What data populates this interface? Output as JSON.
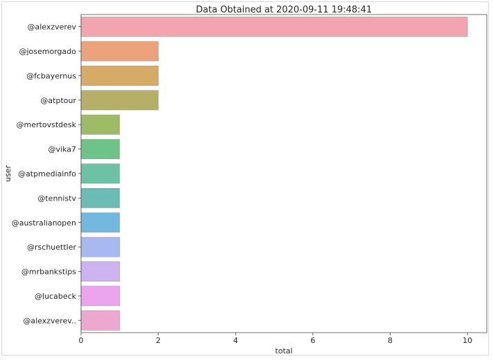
{
  "chart_data": {
    "type": "bar",
    "orientation": "horizontal",
    "title": "Data Obtained at 2020-09-11 19:48:41",
    "xlabel": "total",
    "ylabel": "user",
    "categories": [
      "@alexzverev",
      "@josemorgado",
      "@fcbayernus",
      "@atptour",
      "@mertovstdesk",
      "@vika7",
      "@atpmediainfo",
      "@tennistv",
      "@australianopen",
      "@rschuettler",
      "@mrbankstips",
      "@lucabeck",
      "@alexzverev.."
    ],
    "values": [
      10,
      2,
      2,
      2,
      1,
      1,
      1,
      1,
      1,
      1,
      1,
      1,
      1
    ],
    "xlim": [
      0,
      10.5
    ],
    "xticks": [
      0,
      2,
      4,
      6,
      8,
      10
    ],
    "grid": false,
    "legend": "none",
    "colors": [
      "#f2a5ae",
      "#eca27b",
      "#d6ab68",
      "#b5af67",
      "#9ebc66",
      "#6ec389",
      "#6dc1a4",
      "#6cbcb6",
      "#73b9de",
      "#a7b9f0",
      "#cdb4f0",
      "#eba5ee",
      "#eda8cf"
    ]
  }
}
